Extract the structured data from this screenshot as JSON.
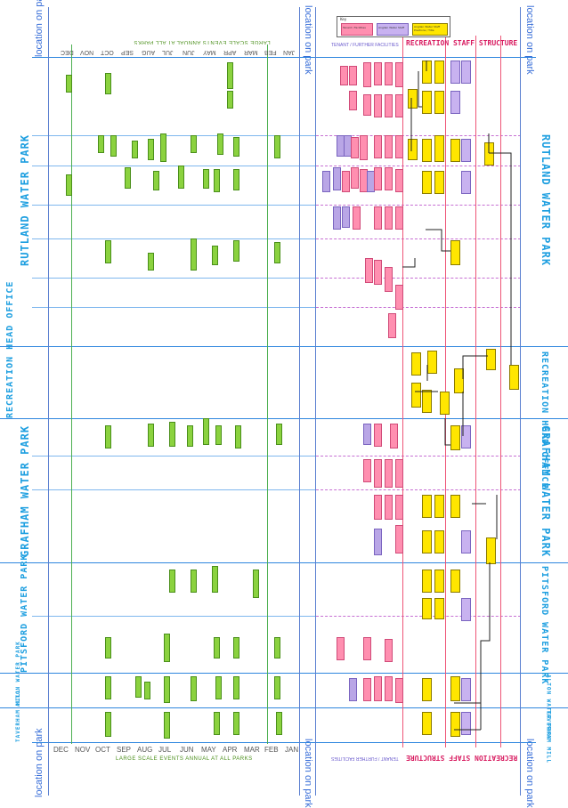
{
  "side_labels": {
    "location": "location on park"
  },
  "park_titles": {
    "rutland": "RUTLAND WATER PARK",
    "head_office": "RECREATION HEAD OFFICE",
    "grafham": "GRAFHAM WATER PARK",
    "pitsford": "PITSFORD WATER PARK",
    "alton": "ALTON WATER PARK",
    "taverham": "TAVERHAM MILL"
  },
  "months_top": [
    "DEC",
    "NOV",
    "OCT",
    "SEP",
    "AUG",
    "JUL",
    "JUN",
    "MAY",
    "APR",
    "MAR",
    "FEB",
    "JAN"
  ],
  "months_bottom": [
    "DEC",
    "NOV",
    "OCT",
    "SEP",
    "AUG",
    "JUL",
    "JUN",
    "MAY",
    "APR",
    "MAR",
    "FEB",
    "JAN"
  ],
  "section_headers": {
    "events": "LARGE SCALE EVENTS ANNUAL AT ALL PARKS",
    "tenant": "TENANT / FURTHER FACILITIES",
    "staff": "RECREATION STAFF STRUCTURE"
  },
  "key": {
    "title": "Key",
    "item1": "Tenant / Facilities",
    "item2": "Anglian Water Staff",
    "item3": "Anglian Water Staff Positions / Title"
  },
  "colors": {
    "blue_title": "#1e9fe0",
    "event_green": "#8bd23f",
    "facility_pink": "#ff8fb0",
    "facility_purple": "#b9a6e6",
    "staff_yellow": "#ffe600",
    "header_red": "#d81b60"
  }
}
